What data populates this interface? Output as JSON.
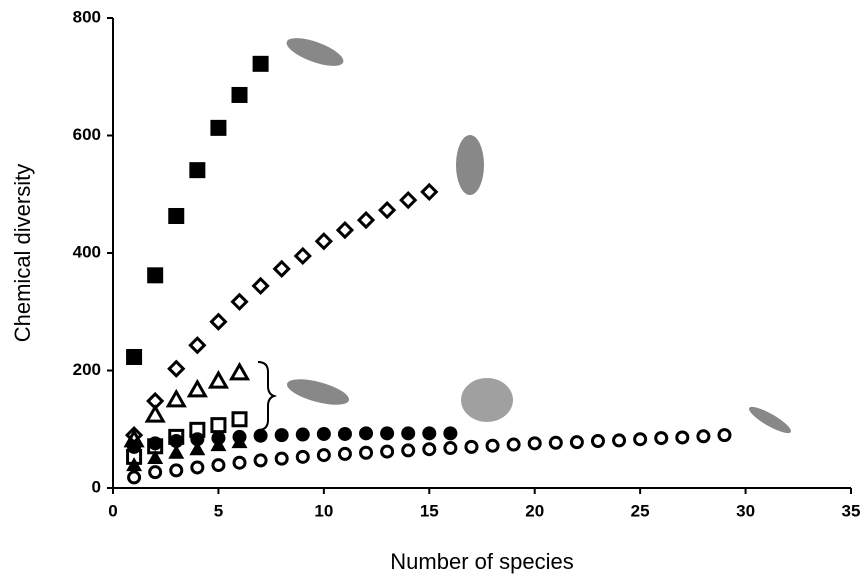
{
  "chart_data": {
    "type": "scatter",
    "x_label": "Number of species",
    "y_label": "Chemical diversity",
    "xlim": [
      0,
      35
    ],
    "xticks": [
      0,
      5,
      10,
      15,
      20,
      25,
      30,
      35
    ],
    "ylim": [
      0,
      800
    ],
    "yticks": [
      0,
      200,
      400,
      600,
      800
    ],
    "grid": false,
    "series": [
      {
        "marker": "square",
        "filled": true,
        "color": "#000000",
        "x": [
          1,
          2,
          3,
          4,
          5,
          6,
          7
        ],
        "values": [
          223,
          362,
          463,
          541,
          613,
          669,
          722
        ]
      },
      {
        "marker": "diamond",
        "filled": false,
        "color": "#000000",
        "x": [
          1,
          2,
          3,
          4,
          5,
          6,
          7,
          8,
          9,
          10,
          11,
          12,
          13,
          14,
          15
        ],
        "values": [
          90,
          148,
          203,
          243,
          283,
          317,
          344,
          373,
          395,
          420,
          439,
          456,
          473,
          490,
          504
        ]
      },
      {
        "marker": "triangle",
        "filled": false,
        "color": "#000000",
        "x": [
          1,
          2,
          3,
          4,
          5,
          6
        ],
        "values": [
          82,
          124,
          150,
          167,
          182,
          196
        ]
      },
      {
        "marker": "square",
        "filled": false,
        "color": "#000000",
        "x": [
          1,
          2,
          3,
          4,
          5,
          6
        ],
        "values": [
          53,
          71,
          87,
          99,
          107,
          117
        ]
      },
      {
        "marker": "triangle",
        "filled": true,
        "color": "#000000",
        "x": [
          1,
          2,
          3,
          4,
          5,
          6
        ],
        "values": [
          39,
          51,
          60,
          66,
          73,
          78
        ]
      },
      {
        "marker": "circle",
        "filled": true,
        "color": "#000000",
        "x": [
          1,
          2,
          3,
          4,
          5,
          6,
          7,
          8,
          9,
          10,
          11,
          12,
          13,
          14,
          15,
          16
        ],
        "values": [
          70,
          76,
          80,
          83,
          85,
          87,
          89,
          90,
          91,
          92,
          92,
          93,
          93,
          93,
          93,
          93
        ]
      },
      {
        "marker": "circle",
        "filled": false,
        "color": "#000000",
        "x": [
          1,
          2,
          3,
          4,
          5,
          6,
          7,
          8,
          9,
          10,
          11,
          12,
          13,
          14,
          15,
          16,
          17,
          18,
          19,
          20,
          21,
          22,
          23,
          24,
          25,
          26,
          27,
          28,
          29
        ],
        "values": [
          18,
          27,
          30,
          35,
          39,
          43,
          47,
          50,
          53,
          56,
          58,
          60,
          62,
          64,
          66,
          68,
          70,
          72,
          74,
          76,
          77,
          78,
          80,
          81,
          83,
          85,
          86,
          88,
          90
        ]
      }
    ]
  }
}
